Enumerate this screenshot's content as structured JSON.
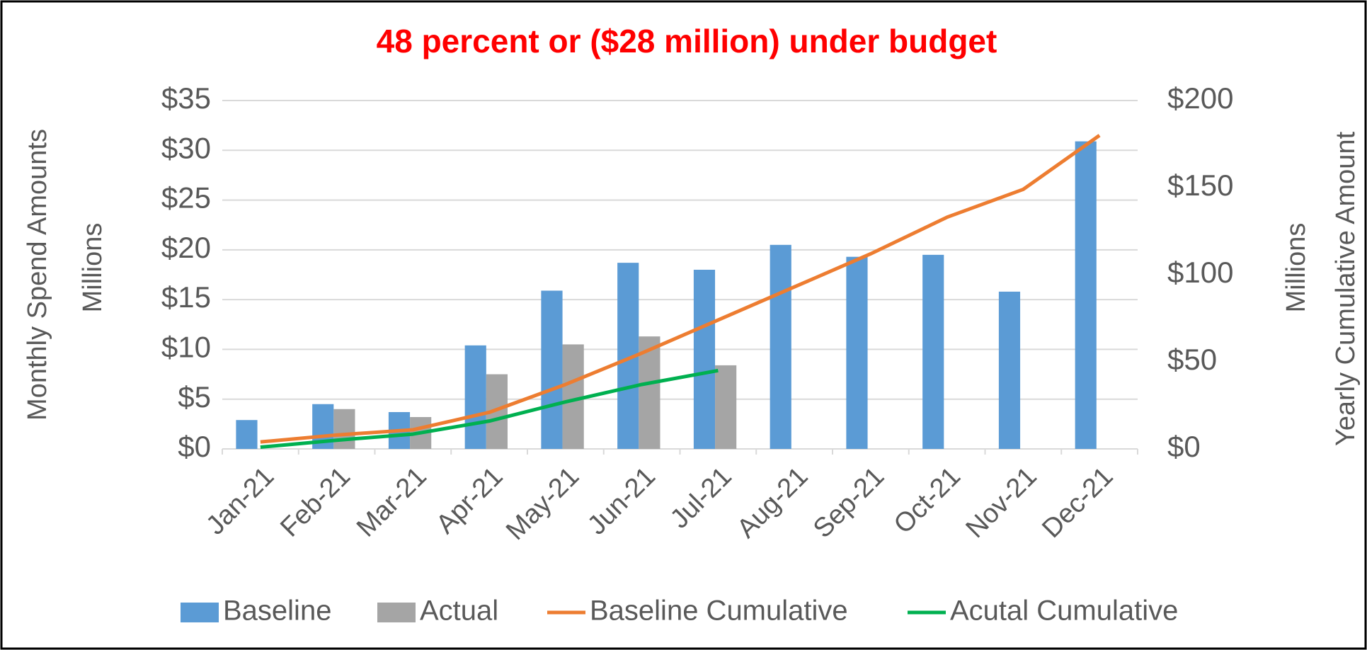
{
  "chart_data": {
    "type": "bar",
    "title": "48 percent or ($28 million) under budget",
    "y_label": "Monthly Spend Amounts",
    "y_unit": "Millions",
    "y2_label": "Yearly Cumulative Amount",
    "y2_unit": "Millions",
    "categories": [
      "Jan-21",
      "Feb-21",
      "Mar-21",
      "Apr-21",
      "May-21",
      "Jun-21",
      "Jul-21",
      "Aug-21",
      "Sep-21",
      "Oct-21",
      "Nov-21",
      "Dec-21"
    ],
    "series": [
      {
        "name": "Baseline",
        "type": "bar",
        "color": "#5b9bd5",
        "values": [
          2.9,
          4.5,
          3.7,
          10.4,
          15.9,
          18.7,
          18.0,
          20.5,
          19.3,
          19.5,
          15.8,
          30.9
        ]
      },
      {
        "name": "Actual",
        "type": "bar",
        "color": "#a5a5a5",
        "values": [
          null,
          4.0,
          3.2,
          7.5,
          10.5,
          11.3,
          8.4,
          null,
          null,
          null,
          null,
          null
        ]
      },
      {
        "name": "Baseline Cumulative",
        "type": "line",
        "axis": "y2",
        "color": "#ed7d31",
        "values": [
          4,
          8,
          11,
          21,
          37,
          55,
          74,
          93,
          112,
          133,
          149,
          180
        ]
      },
      {
        "name": "Acutal Cumulative",
        "type": "line",
        "axis": "y2",
        "color": "#00b050",
        "values": [
          1,
          5,
          8.5,
          16,
          27,
          37,
          45,
          null,
          null,
          null,
          null,
          null
        ]
      }
    ],
    "ylim": [
      0,
      35
    ],
    "yticks": [
      {
        "value": 0,
        "label": "$0"
      },
      {
        "value": 5,
        "label": "$5"
      },
      {
        "value": 10,
        "label": "$10"
      },
      {
        "value": 15,
        "label": "$15"
      },
      {
        "value": 20,
        "label": "$20"
      },
      {
        "value": 25,
        "label": "$25"
      },
      {
        "value": 30,
        "label": "$30"
      },
      {
        "value": 35,
        "label": "$35"
      }
    ],
    "y2lim": [
      0,
      200
    ],
    "y2ticks": [
      {
        "value": 0,
        "label": "$0"
      },
      {
        "value": 50,
        "label": "$50"
      },
      {
        "value": 100,
        "label": "$100"
      },
      {
        "value": 150,
        "label": "$150"
      },
      {
        "value": 200,
        "label": "$200"
      }
    ],
    "grid": true,
    "legend": "bottom"
  }
}
